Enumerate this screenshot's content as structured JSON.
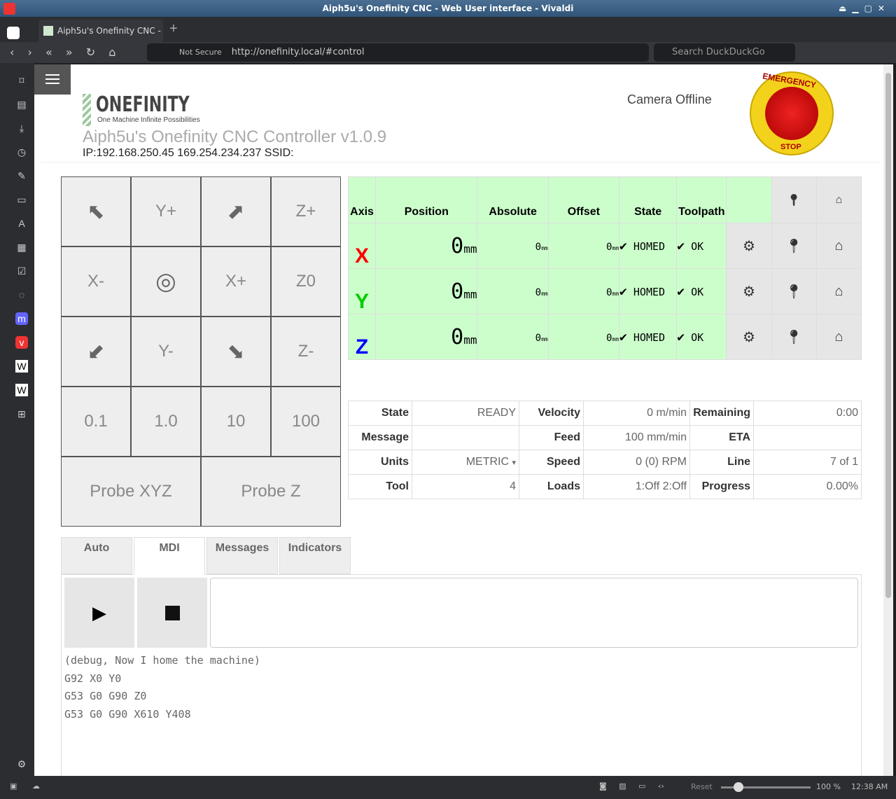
{
  "window": {
    "title": "Aiph5u's Onefinity CNC - Web User interface - Vivaldi",
    "tab": "Aiph5u's Onefinity CNC - W",
    "security": "Not Secure",
    "url": "http://onefinity.local/#control",
    "search_placeholder": "Search DuckDuckGo"
  },
  "status_bar": {
    "reset": "Reset",
    "zoom": "100 %",
    "time": "12:38 AM",
    "zoom_level": 100
  },
  "header": {
    "logo_text": "ONEFINITY",
    "logo_tagline": "One Machine Infinite Possibilities",
    "title": "Aiph5u's Onefinity CNC Controller v1.0.9",
    "ip": "IP:192.168.250.45 169.254.234.237 SSID:",
    "camera": "Camera Offline",
    "estop_top": "EMERGENCY",
    "estop_bottom": "STOP"
  },
  "jog": {
    "yplus": "Y+",
    "zplus": "Z+",
    "xminus": "X-",
    "xplus": "X+",
    "z0": "Z0",
    "yminus": "Y-",
    "zminus": "Z-",
    "steps": [
      "0.1",
      "1.0",
      "10",
      "100"
    ],
    "probe_xyz": "Probe XYZ",
    "probe_z": "Probe Z"
  },
  "axes": {
    "headers": [
      "Axis",
      "Position",
      "Absolute",
      "Offset",
      "State",
      "Toolpath"
    ],
    "rows": [
      {
        "axis": "X",
        "color": "#ff0000",
        "pos": "0",
        "abs": "0",
        "off": "0",
        "unit": "mm",
        "state": "HOMED",
        "toolpath": "OK"
      },
      {
        "axis": "Y",
        "color": "#00cc00",
        "pos": "0",
        "abs": "0",
        "off": "0",
        "unit": "mm",
        "state": "HOMED",
        "toolpath": "OK"
      },
      {
        "axis": "Z",
        "color": "#0000ff",
        "pos": "0",
        "abs": "0",
        "off": "0",
        "unit": "mm",
        "state": "HOMED",
        "toolpath": "OK"
      }
    ]
  },
  "status": {
    "state_l": "State",
    "state": "READY",
    "velocity_l": "Velocity",
    "velocity": "0 m/min",
    "remaining_l": "Remaining",
    "remaining": "0:00",
    "message_l": "Message",
    "message": "",
    "feed_l": "Feed",
    "feed": "100 mm/min",
    "eta_l": "ETA",
    "eta": "",
    "units_l": "Units",
    "units": "METRIC",
    "speed_l": "Speed",
    "speed": "0 (0) RPM",
    "line_l": "Line",
    "line": "7 of 1",
    "tool_l": "Tool",
    "tool": "4",
    "loads_l": "Loads",
    "loads": "1:Off 2:Off",
    "progress_l": "Progress",
    "progress": "0.00%"
  },
  "tabs": [
    "Auto",
    "MDI",
    "Messages",
    "Indicators"
  ],
  "mdi": {
    "log": [
      "(debug, Now I home the machine)",
      "G92 X0 Y0",
      "G53 G0 G90 Z0",
      "G53 G0 G90 X610 Y408"
    ]
  }
}
